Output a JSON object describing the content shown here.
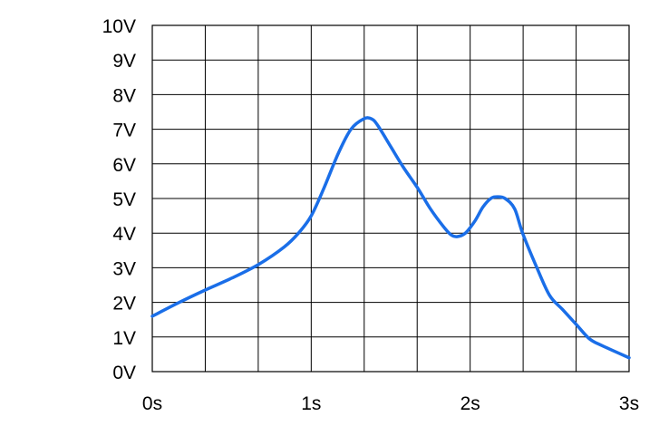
{
  "chart_data": {
    "type": "line",
    "title": "",
    "xlabel": "",
    "ylabel": "",
    "xlim": [
      0,
      3
    ],
    "ylim": [
      0,
      10
    ],
    "grid": true,
    "x_ticks": [
      {
        "value": 0,
        "label": "0s"
      },
      {
        "value": 1,
        "label": "1s"
      },
      {
        "value": 2,
        "label": "2s"
      },
      {
        "value": 3,
        "label": "3s"
      }
    ],
    "y_ticks": [
      {
        "value": 0,
        "label": "0V"
      },
      {
        "value": 1,
        "label": "1V"
      },
      {
        "value": 2,
        "label": "2V"
      },
      {
        "value": 3,
        "label": "3V"
      },
      {
        "value": 4,
        "label": "4V"
      },
      {
        "value": 5,
        "label": "5V"
      },
      {
        "value": 6,
        "label": "6V"
      },
      {
        "value": 7,
        "label": "7V"
      },
      {
        "value": 8,
        "label": "8V"
      },
      {
        "value": 9,
        "label": "9V"
      },
      {
        "value": 10,
        "label": "10V"
      }
    ],
    "series": [
      {
        "color": "#1a6ee8",
        "x": [
          0,
          0.17,
          0.33,
          0.5,
          0.67,
          0.83,
          0.92,
          1.0,
          1.08,
          1.17,
          1.25,
          1.33,
          1.38,
          1.42,
          1.5,
          1.58,
          1.67,
          1.75,
          1.83,
          1.88,
          1.92,
          1.97,
          2.03,
          2.08,
          2.13,
          2.17,
          2.22,
          2.28,
          2.33,
          2.42,
          2.5,
          2.58,
          2.67,
          2.75,
          2.83,
          3.0
        ],
        "y": [
          1.6,
          2.0,
          2.35,
          2.7,
          3.1,
          3.6,
          4.0,
          4.5,
          5.3,
          6.3,
          7.0,
          7.3,
          7.3,
          7.1,
          6.5,
          5.9,
          5.3,
          4.7,
          4.2,
          3.95,
          3.9,
          4.0,
          4.35,
          4.75,
          5.0,
          5.05,
          5.0,
          4.7,
          4.0,
          3.0,
          2.2,
          1.8,
          1.35,
          0.95,
          0.75,
          0.4
        ]
      }
    ]
  }
}
